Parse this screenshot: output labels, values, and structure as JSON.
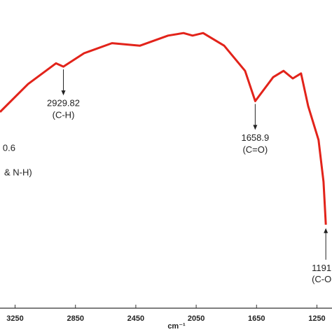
{
  "chart_data": {
    "type": "line",
    "x_label": "cm⁻¹",
    "xlim": [
      3350,
      1150
    ],
    "ylim": [
      0,
      100
    ],
    "xticks": [
      3250,
      2850,
      2450,
      2050,
      1650,
      1250
    ],
    "reverse_x": true,
    "series": [
      {
        "color": "#e2231a",
        "x": [
          3350,
          3164,
          2979,
          2929.82,
          2793,
          2608,
          2422,
          2236,
          2134,
          2074,
          2004,
          1865,
          1726,
          1658.9,
          1540,
          1471,
          1410,
          1355,
          1308,
          1239,
          1206,
          1191
        ],
        "values": [
          66.7,
          77.8,
          86,
          84.7,
          90,
          94,
          93,
          97,
          98,
          97,
          98,
          93,
          83,
          71,
          80.5,
          83,
          80,
          82,
          69,
          55.6,
          39,
          22
        ]
      }
    ],
    "annotations": [
      {
        "label": "2929.82",
        "note": "(C-H)",
        "x": 2929.82
      },
      {
        "label": "1658.9",
        "note": "(C=O)",
        "x": 1658.9
      },
      {
        "label": "1191",
        "note": "(C-O",
        "x": 1191
      },
      {
        "label": "0.6",
        "note": "& N-H)"
      }
    ]
  }
}
